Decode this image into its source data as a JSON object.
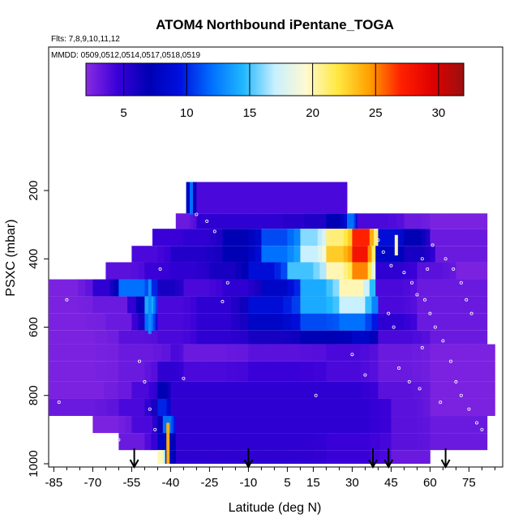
{
  "chart_data": {
    "type": "heatmap",
    "title": "ATOM4 Northbound iPentane_TOGA",
    "flights_note": "Flts: 7,8,9,10,11,12",
    "dates_note": "MMDD: 0509,0512,0514,0517,0518,0519",
    "xlabel": "Latitude (deg N)",
    "ylabel": "PSXC (mbar)",
    "xlim": [
      -87,
      88
    ],
    "ylim": [
      1000,
      0
    ],
    "x_ticks": [
      -85,
      -70,
      -55,
      -40,
      -25,
      -10,
      5,
      15,
      30,
      45,
      60,
      75
    ],
    "y_ticks": [
      200,
      400,
      600,
      800,
      1000
    ],
    "colorbar": {
      "range": [
        2,
        32
      ],
      "ticks": [
        5,
        10,
        15,
        20,
        25,
        30
      ],
      "colors": [
        "#8a2be2",
        "#3a00d8",
        "#0000b4",
        "#0010e0",
        "#0070ff",
        "#20b8ff",
        "#c8f0ff",
        "#fffad0",
        "#ffe840",
        "#ffa000",
        "#ff2000",
        "#e00000",
        "#9b1010"
      ]
    },
    "arrows_lat": [
      -54,
      -10,
      38,
      44,
      66
    ],
    "heat_rows": [
      {
        "p_top": 175,
        "p_bot": 267,
        "segments": [
          [
            -34,
            -30,
            8
          ],
          [
            -30,
            28,
            4
          ]
        ]
      },
      {
        "p_top": 267,
        "p_bot": 312,
        "segments": [
          [
            -38,
            -30,
            3
          ],
          [
            -30,
            20,
            5
          ],
          [
            20,
            28,
            7
          ],
          [
            28,
            32,
            12
          ],
          [
            32,
            50,
            4
          ],
          [
            50,
            60,
            3
          ],
          [
            60,
            82,
            2.5
          ]
        ]
      },
      {
        "p_top": 312,
        "p_bot": 362,
        "segments": [
          [
            -47,
            -35,
            4.5
          ],
          [
            -35,
            -20,
            5
          ],
          [
            -20,
            -5,
            7
          ],
          [
            -5,
            10,
            11
          ],
          [
            10,
            20,
            16
          ],
          [
            20,
            30,
            21
          ],
          [
            30,
            40,
            27
          ],
          [
            40,
            50,
            9
          ],
          [
            50,
            60,
            7
          ],
          [
            60,
            82,
            3
          ]
        ]
      },
      {
        "p_top": 362,
        "p_bot": 410,
        "segments": [
          [
            -55,
            -40,
            4
          ],
          [
            -40,
            -20,
            5.5
          ],
          [
            -20,
            -5,
            7
          ],
          [
            -5,
            10,
            12
          ],
          [
            10,
            20,
            17
          ],
          [
            20,
            30,
            23
          ],
          [
            30,
            39,
            28
          ],
          [
            39,
            50,
            8
          ],
          [
            50,
            62,
            6
          ],
          [
            62,
            82,
            3
          ]
        ]
      },
      {
        "p_top": 410,
        "p_bot": 460,
        "segments": [
          [
            -65,
            -50,
            3.5
          ],
          [
            -50,
            -40,
            4.5
          ],
          [
            -40,
            -25,
            5
          ],
          [
            -25,
            -10,
            6
          ],
          [
            -10,
            5,
            9
          ],
          [
            5,
            20,
            15
          ],
          [
            20,
            30,
            20
          ],
          [
            30,
            39,
            25
          ],
          [
            39,
            55,
            5
          ],
          [
            55,
            70,
            3.5
          ],
          [
            70,
            82,
            2.5
          ]
        ]
      },
      {
        "p_top": 460,
        "p_bot": 510,
        "segments": [
          [
            -87,
            -70,
            2.5
          ],
          [
            -70,
            -60,
            5
          ],
          [
            -60,
            -45,
            12
          ],
          [
            -45,
            -35,
            6
          ],
          [
            -35,
            -20,
            4
          ],
          [
            -20,
            -5,
            5
          ],
          [
            -5,
            10,
            8
          ],
          [
            10,
            25,
            14
          ],
          [
            25,
            39,
            20
          ],
          [
            39,
            55,
            4
          ],
          [
            55,
            82,
            3
          ]
        ]
      },
      {
        "p_top": 510,
        "p_bot": 560,
        "segments": [
          [
            -87,
            -70,
            2.5
          ],
          [
            -70,
            -50,
            3
          ],
          [
            -50,
            -45,
            14
          ],
          [
            -45,
            -30,
            4
          ],
          [
            -30,
            -10,
            5
          ],
          [
            -10,
            10,
            9
          ],
          [
            10,
            25,
            14
          ],
          [
            25,
            40,
            17
          ],
          [
            40,
            55,
            4
          ],
          [
            55,
            82,
            3
          ]
        ]
      },
      {
        "p_top": 560,
        "p_bot": 610,
        "segments": [
          [
            -87,
            -65,
            2.5
          ],
          [
            -65,
            -50,
            3
          ],
          [
            -50,
            -45,
            12
          ],
          [
            -45,
            -30,
            4
          ],
          [
            -30,
            -10,
            5
          ],
          [
            -10,
            10,
            8
          ],
          [
            10,
            25,
            11
          ],
          [
            25,
            40,
            12
          ],
          [
            40,
            55,
            5
          ],
          [
            55,
            82,
            3
          ]
        ]
      },
      {
        "p_top": 610,
        "p_bot": 650,
        "segments": [
          [
            -87,
            -60,
            2.5
          ],
          [
            -60,
            -45,
            3.5
          ],
          [
            -45,
            -30,
            4
          ],
          [
            -30,
            -10,
            5
          ],
          [
            -10,
            10,
            6
          ],
          [
            10,
            30,
            7
          ],
          [
            30,
            40,
            8
          ],
          [
            40,
            60,
            4
          ],
          [
            60,
            82,
            3
          ]
        ]
      },
      {
        "p_top": 650,
        "p_bot": 700,
        "segments": [
          [
            -87,
            -60,
            2.5
          ],
          [
            -60,
            -40,
            3
          ],
          [
            -40,
            -35,
            4
          ],
          [
            -35,
            -10,
            3
          ],
          [
            -10,
            20,
            3.5
          ],
          [
            20,
            40,
            4
          ],
          [
            40,
            60,
            3
          ],
          [
            60,
            85,
            2.5
          ]
        ]
      },
      {
        "p_top": 700,
        "p_bot": 760,
        "segments": [
          [
            -87,
            -60,
            2.5
          ],
          [
            -60,
            -45,
            3
          ],
          [
            -45,
            -35,
            5
          ],
          [
            -35,
            -10,
            4
          ],
          [
            -10,
            20,
            4.5
          ],
          [
            20,
            40,
            4
          ],
          [
            40,
            60,
            3
          ],
          [
            60,
            85,
            2.5
          ]
        ]
      },
      {
        "p_top": 760,
        "p_bot": 810,
        "segments": [
          [
            -87,
            -55,
            2.5
          ],
          [
            -55,
            -45,
            4
          ],
          [
            -45,
            -40,
            7
          ],
          [
            -40,
            -10,
            5
          ],
          [
            -10,
            20,
            5
          ],
          [
            20,
            40,
            5
          ],
          [
            40,
            60,
            3.5
          ],
          [
            60,
            85,
            2.5
          ]
        ]
      },
      {
        "p_top": 810,
        "p_bot": 860,
        "segments": [
          [
            -87,
            -60,
            3
          ],
          [
            -60,
            -45,
            4
          ],
          [
            -45,
            -40,
            10
          ],
          [
            -40,
            -10,
            5
          ],
          [
            -10,
            20,
            5
          ],
          [
            20,
            45,
            5
          ],
          [
            45,
            60,
            3.5
          ],
          [
            60,
            85,
            2.5
          ]
        ]
      },
      {
        "p_top": 860,
        "p_bot": 910,
        "segments": [
          [
            -70,
            -55,
            2.5
          ],
          [
            -55,
            -43,
            4
          ],
          [
            -43,
            -38,
            12
          ],
          [
            -38,
            -10,
            5
          ],
          [
            -10,
            20,
            5
          ],
          [
            20,
            45,
            5
          ],
          [
            45,
            60,
            3.5
          ],
          [
            60,
            82,
            3
          ]
        ]
      },
      {
        "p_top": 910,
        "p_bot": 960,
        "segments": [
          [
            -60,
            -45,
            3
          ],
          [
            -45,
            -38,
            8
          ],
          [
            -38,
            -10,
            5
          ],
          [
            -10,
            20,
            5
          ],
          [
            20,
            45,
            4.5
          ],
          [
            45,
            60,
            3.5
          ],
          [
            60,
            82,
            3
          ]
        ]
      },
      {
        "p_top": 960,
        "p_bot": 1000,
        "segments": [
          [
            -45,
            -42,
            20
          ],
          [
            -42,
            -38,
            8
          ],
          [
            -38,
            -10,
            5
          ],
          [
            -10,
            20,
            5
          ],
          [
            20,
            45,
            4.5
          ],
          [
            45,
            60,
            3
          ]
        ]
      }
    ],
    "vertical_streaks": [
      {
        "lat": -32,
        "p_top": 175,
        "p_bot": 270,
        "value": 12
      },
      {
        "lat": -41,
        "p_top": 880,
        "p_bot": 1000,
        "value": 24
      },
      {
        "lat": -48,
        "p_top": 460,
        "p_bot": 620,
        "value": 13
      },
      {
        "lat": 47,
        "p_top": 330,
        "p_bot": 390,
        "value": 20
      }
    ],
    "sample_points": [
      {
        "lat": -30,
        "p": 270
      },
      {
        "lat": -26,
        "p": 290
      },
      {
        "lat": -23,
        "p": 320
      },
      {
        "lat": -44,
        "p": 430
      },
      {
        "lat": -18,
        "p": 470
      },
      {
        "lat": 40,
        "p": 345
      },
      {
        "lat": 42,
        "p": 380
      },
      {
        "lat": 45,
        "p": 420
      },
      {
        "lat": 50,
        "p": 440
      },
      {
        "lat": 53,
        "p": 470
      },
      {
        "lat": 55,
        "p": 505
      },
      {
        "lat": 58,
        "p": 520
      },
      {
        "lat": 60,
        "p": 560
      },
      {
        "lat": 62,
        "p": 600
      },
      {
        "lat": 65,
        "p": 640
      },
      {
        "lat": 68,
        "p": 700
      },
      {
        "lat": 70,
        "p": 760
      },
      {
        "lat": 72,
        "p": 800
      },
      {
        "lat": 75,
        "p": 840
      },
      {
        "lat": 78,
        "p": 880
      },
      {
        "lat": 80,
        "p": 900
      },
      {
        "lat": 57,
        "p": 660
      },
      {
        "lat": 48,
        "p": 720
      },
      {
        "lat": 52,
        "p": 760
      },
      {
        "lat": 56,
        "p": 780
      },
      {
        "lat": 64,
        "p": 820
      },
      {
        "lat": 61,
        "p": 360
      },
      {
        "lat": 66,
        "p": 400
      },
      {
        "lat": 69,
        "p": 430
      },
      {
        "lat": 72,
        "p": 470
      },
      {
        "lat": 74,
        "p": 520
      },
      {
        "lat": 76,
        "p": 560
      },
      {
        "lat": -52,
        "p": 700
      },
      {
        "lat": -50,
        "p": 760
      },
      {
        "lat": -48,
        "p": 840
      },
      {
        "lat": -46,
        "p": 900
      },
      {
        "lat": -35,
        "p": 750
      },
      {
        "lat": 16,
        "p": 800
      },
      {
        "lat": 35,
        "p": 740
      },
      {
        "lat": -60,
        "p": 930
      },
      {
        "lat": -80,
        "p": 520
      },
      {
        "lat": -83,
        "p": 820
      },
      {
        "lat": 30,
        "p": 680
      },
      {
        "lat": 44,
        "p": 560
      },
      {
        "lat": 46,
        "p": 600
      },
      {
        "lat": -20,
        "p": 525
      },
      {
        "lat": 57,
        "p": 400
      },
      {
        "lat": 59,
        "p": 430
      }
    ]
  }
}
